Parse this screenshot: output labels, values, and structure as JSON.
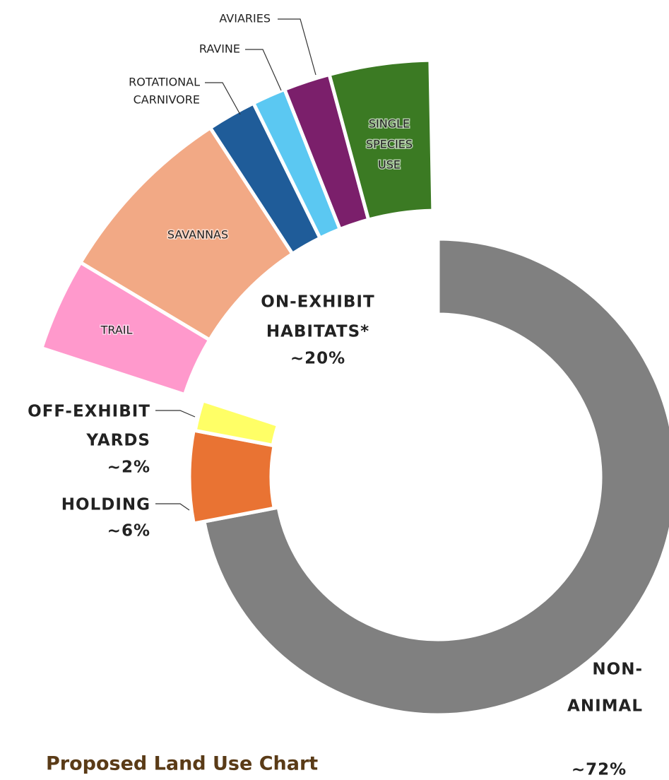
{
  "chart_data": {
    "type": "donut",
    "title": "Proposed Land Use Chart",
    "slices": [
      {
        "label": [
          "NON-",
          "ANIMAL"
        ],
        "value": 72,
        "value_label": "~72%",
        "color": "#808080"
      },
      {
        "label": [
          "HOLDING"
        ],
        "value": 6,
        "value_label": "~6%",
        "color": "#e97333"
      },
      {
        "label": [
          "OFF-EXHIBIT",
          "YARDS"
        ],
        "value": 2,
        "value_label": "~2%",
        "color": "#ffff66"
      }
    ],
    "group": {
      "label": [
        "ON-EXHIBIT",
        "HABITATS*"
      ],
      "value": 20,
      "value_label": "~20%",
      "segments": [
        {
          "label": [
            "TRAIL"
          ],
          "value": 3.6,
          "color": "#ff99cc"
        },
        {
          "label": [
            "SAVANNAS"
          ],
          "value": 7.2,
          "color": "#f2a985"
        },
        {
          "label": [
            "ROTATIONAL",
            "CARNIVORE"
          ],
          "value": 1.9,
          "color": "#1f5c99"
        },
        {
          "label": [
            "RAVINE"
          ],
          "value": 1.3,
          "color": "#5bc8f2"
        },
        {
          "label": [
            "AVIARIES"
          ],
          "value": 1.8,
          "color": "#7b1f6b"
        },
        {
          "label": [
            "SINGLE",
            "SPECIES",
            "USE"
          ],
          "value": 3.9,
          "color": "#3b7a23"
        }
      ]
    }
  }
}
